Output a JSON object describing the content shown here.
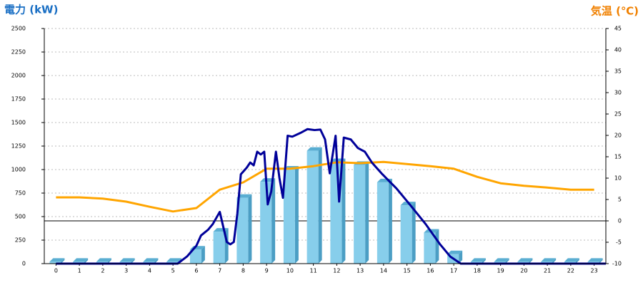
{
  "chart_data": {
    "type": "bar_line_combo",
    "y_title": "電力 (kW)",
    "y2_title": "気温 (℃)",
    "categories": [
      "0",
      "1",
      "2",
      "3",
      "4",
      "5",
      "6",
      "7",
      "8",
      "9",
      "10",
      "11",
      "12",
      "13",
      "14",
      "15",
      "16",
      "17",
      "18",
      "19",
      "20",
      "21",
      "22",
      "23"
    ],
    "xlim": [
      -0.5,
      23.5
    ],
    "ylim": [
      0,
      2500
    ],
    "yticks": [
      0,
      250,
      500,
      750,
      1000,
      1250,
      1500,
      1750,
      2000,
      2250,
      2500
    ],
    "y2lim": [
      -10,
      45
    ],
    "y2ticks": [
      -10,
      -5,
      0,
      5,
      10,
      15,
      20,
      25,
      30,
      35,
      40,
      45
    ],
    "reference_line_y2": 0,
    "grid": true,
    "bars": {
      "color": "#87ceeb",
      "values": [
        20,
        20,
        20,
        20,
        20,
        20,
        150,
        340,
        700,
        870,
        1000,
        1200,
        1080,
        1050,
        865,
        620,
        330,
        100,
        20,
        20,
        20,
        20,
        20,
        20
      ]
    },
    "power_trace": {
      "color": "#000099",
      "x": [
        0,
        5.2,
        5.6,
        6.0,
        6.2,
        6.5,
        6.7,
        7.0,
        7.3,
        7.45,
        7.6,
        7.75,
        7.9,
        8.15,
        8.3,
        8.45,
        8.6,
        8.75,
        8.9,
        9.05,
        9.2,
        9.4,
        9.55,
        9.7,
        9.9,
        10.1,
        10.45,
        10.75,
        11.05,
        11.3,
        11.5,
        11.7,
        11.95,
        12.1,
        12.3,
        12.6,
        12.9,
        13.2,
        13.5,
        13.95,
        14.55,
        15.15,
        15.8,
        16.4,
        16.85,
        17.3,
        23.5
      ],
      "values": [
        0,
        0,
        76,
        190,
        300,
        360,
        420,
        550,
        230,
        205,
        230,
        530,
        950,
        1020,
        1075,
        1045,
        1190,
        1160,
        1190,
        630,
        770,
        1190,
        910,
        700,
        1360,
        1350,
        1390,
        1430,
        1420,
        1425,
        1320,
        960,
        1360,
        660,
        1340,
        1320,
        1230,
        1190,
        1075,
        950,
        800,
        620,
        420,
        210,
        75,
        0,
        0
      ]
    },
    "temperature": {
      "color": "#ffa500",
      "axis": "y2",
      "values": [
        5.5,
        5.5,
        5.2,
        4.5,
        3.3,
        2.2,
        3,
        7.3,
        9,
        12.2,
        12.2,
        12.8,
        13.7,
        13.5,
        13.8,
        13.3,
        12.8,
        12.2,
        10.3,
        8.8,
        8.2,
        7.8,
        7.3,
        7.3
      ]
    }
  }
}
